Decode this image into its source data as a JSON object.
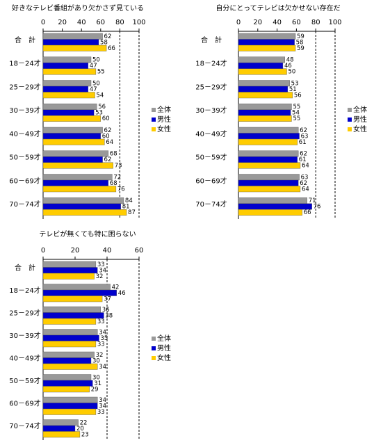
{
  "chart_data": [
    {
      "type": "bar",
      "orientation": "horizontal",
      "title": "好きなテレビ番組があり欠かさず見ている",
      "categories": [
        "合　計",
        "18－24才",
        "25－29才",
        "30－39才",
        "40－49才",
        "50－59才",
        "60－69才",
        "70－74才"
      ],
      "series": [
        {
          "name": "全体",
          "color": "#999999",
          "values": [
            62,
            50,
            50,
            56,
            62,
            68,
            72,
            84
          ]
        },
        {
          "name": "男性",
          "color": "#0000cc",
          "values": [
            58,
            47,
            47,
            53,
            60,
            62,
            68,
            81
          ]
        },
        {
          "name": "女性",
          "color": "#ffcc00",
          "values": [
            66,
            55,
            54,
            60,
            64,
            73,
            76,
            87
          ]
        }
      ],
      "xlim": [
        0,
        100
      ],
      "xticks": [
        0,
        20,
        40,
        60,
        80,
        100
      ],
      "gridlines": [
        80,
        100
      ],
      "legend": "right"
    },
    {
      "type": "bar",
      "orientation": "horizontal",
      "title": "自分にとってテレビは欠かせない存在だ",
      "categories": [
        "合　計",
        "18－24才",
        "25－29才",
        "30－39才",
        "40－49才",
        "50－59才",
        "60－69才",
        "70－74才"
      ],
      "series": [
        {
          "name": "全体",
          "color": "#999999",
          "values": [
            59,
            48,
            53,
            55,
            62,
            62,
            63,
            71
          ]
        },
        {
          "name": "男性",
          "color": "#0000cc",
          "values": [
            58,
            46,
            51,
            54,
            63,
            61,
            62,
            76
          ]
        },
        {
          "name": "女性",
          "color": "#ffcc00",
          "values": [
            59,
            50,
            56,
            55,
            61,
            64,
            64,
            66
          ]
        }
      ],
      "xlim": [
        0,
        100
      ],
      "xticks": [
        0,
        20,
        40,
        60,
        80,
        100
      ],
      "gridlines": [
        80,
        100
      ],
      "legend": "right"
    },
    {
      "type": "bar",
      "orientation": "horizontal",
      "title": "テレビが無くても特に困らない",
      "categories": [
        "合　計",
        "18－24才",
        "25－29才",
        "30－39才",
        "40－49才",
        "50－59才",
        "60－69才",
        "70－74才"
      ],
      "series": [
        {
          "name": "全体",
          "color": "#999999",
          "values": [
            33,
            42,
            36,
            34,
            32,
            30,
            34,
            22
          ]
        },
        {
          "name": "男性",
          "color": "#0000cc",
          "values": [
            34,
            46,
            38,
            35,
            30,
            31,
            34,
            20
          ]
        },
        {
          "name": "女性",
          "color": "#ffcc00",
          "values": [
            32,
            37,
            33,
            33,
            34,
            29,
            33,
            23
          ]
        }
      ],
      "xlim": [
        0,
        60
      ],
      "xticks": [
        0,
        20,
        40,
        60
      ],
      "gridlines": [
        40,
        60
      ],
      "legend": "right"
    }
  ]
}
